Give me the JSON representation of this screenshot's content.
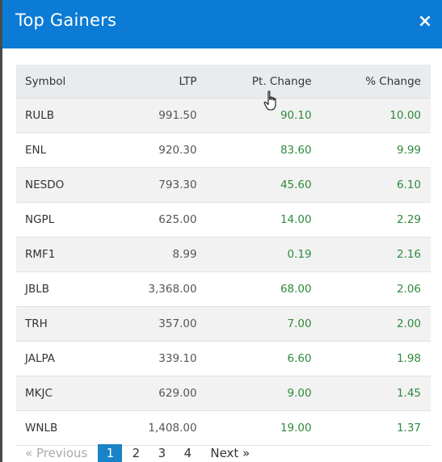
{
  "modal": {
    "title": "Top Gainers",
    "close_glyph": "×"
  },
  "table": {
    "columns": [
      "Symbol",
      "LTP",
      "Pt. Change",
      "% Change"
    ],
    "rows": [
      {
        "symbol": "RULB",
        "ltp": "991.50",
        "pt_change": "90.10",
        "pct_change": "10.00"
      },
      {
        "symbol": "ENL",
        "ltp": "920.30",
        "pt_change": "83.60",
        "pct_change": "9.99"
      },
      {
        "symbol": "NESDO",
        "ltp": "793.30",
        "pt_change": "45.60",
        "pct_change": "6.10"
      },
      {
        "symbol": "NGPL",
        "ltp": "625.00",
        "pt_change": "14.00",
        "pct_change": "2.29"
      },
      {
        "symbol": "RMF1",
        "ltp": "8.99",
        "pt_change": "0.19",
        "pct_change": "2.16"
      },
      {
        "symbol": "JBLB",
        "ltp": "3,368.00",
        "pt_change": "68.00",
        "pct_change": "2.06"
      },
      {
        "symbol": "TRH",
        "ltp": "357.00",
        "pt_change": "7.00",
        "pct_change": "2.00"
      },
      {
        "symbol": "JALPA",
        "ltp": "339.10",
        "pt_change": "6.60",
        "pct_change": "1.98"
      },
      {
        "symbol": "MKJC",
        "ltp": "629.00",
        "pt_change": "9.00",
        "pct_change": "1.45"
      },
      {
        "symbol": "WNLB",
        "ltp": "1,408.00",
        "pt_change": "19.00",
        "pct_change": "1.37"
      }
    ]
  },
  "pagination": {
    "previous": "«  Previous",
    "pages": [
      "1",
      "2",
      "3",
      "4"
    ],
    "active_page": "1",
    "next": "Next  »"
  },
  "colors": {
    "header_blue": "#0b7bd6",
    "gain_green": "#2f8a3c",
    "active_page_blue": "#1a83c8"
  },
  "icons": {
    "close": "close-icon",
    "cursor": "hand-pointer-cursor-icon"
  }
}
